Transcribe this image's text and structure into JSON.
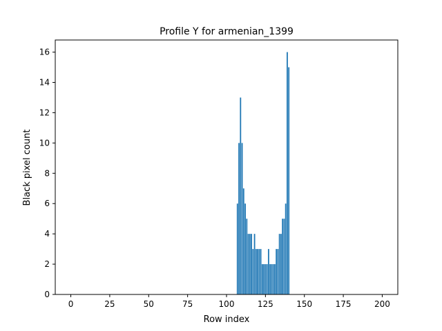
{
  "chart_data": {
    "type": "bar",
    "title": "Profile Y for armenian_1399",
    "xlabel": "Row index",
    "ylabel": "Black pixel count",
    "xlim": [
      -10,
      210
    ],
    "ylim": [
      0,
      16.8
    ],
    "xticks": [
      0,
      25,
      50,
      75,
      100,
      125,
      150,
      175,
      200
    ],
    "yticks": [
      0,
      2,
      4,
      6,
      8,
      10,
      12,
      14,
      16
    ],
    "bar_color": "#1f77b4",
    "grid": false,
    "x": [
      107,
      108,
      109,
      110,
      111,
      112,
      113,
      114,
      115,
      116,
      117,
      118,
      119,
      120,
      121,
      122,
      123,
      124,
      125,
      126,
      127,
      128,
      129,
      130,
      131,
      132,
      133,
      134,
      135,
      136,
      137,
      138,
      139,
      140
    ],
    "values": [
      6,
      10,
      13,
      10,
      7,
      6,
      5,
      4,
      4,
      4,
      3,
      4,
      3,
      3,
      3,
      3,
      2,
      2,
      2,
      2,
      3,
      2,
      2,
      2,
      2,
      3,
      3,
      4,
      4,
      5,
      5,
      6,
      16,
      15
    ]
  }
}
